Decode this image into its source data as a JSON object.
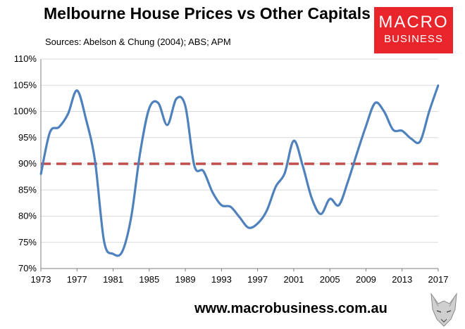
{
  "header": {
    "title": "Melbourne House Prices vs Other Capitals",
    "subtitle": "Sources: Abelson & Chung (2004); ABS; APM"
  },
  "logo": {
    "line1": "MACRO",
    "line2": "BUSINESS",
    "color": "#e8252b"
  },
  "footer": {
    "url": "www.macrobusiness.com.au"
  },
  "colors": {
    "series": "#4f81bd",
    "reference": "#c0504d",
    "grid": "#d9d9d9",
    "axis": "#7f7f7f"
  },
  "chart_data": {
    "type": "line",
    "title": "Melbourne House Prices vs Other Capitals",
    "subtitle": "Sources: Abelson & Chung (2004); ABS; APM",
    "xlabel": "",
    "ylabel": "",
    "x_ticks": [
      "1973",
      "1977",
      "1981",
      "1985",
      "1989",
      "1993",
      "1997",
      "2001",
      "2005",
      "2009",
      "2013",
      "2017"
    ],
    "y_ticks": [
      "70%",
      "75%",
      "80%",
      "85%",
      "90%",
      "95%",
      "100%",
      "105%",
      "110%"
    ],
    "xlim": [
      1973,
      2017
    ],
    "ylim": [
      70,
      110
    ],
    "grid": "horizontal",
    "legend": "none",
    "series": [
      {
        "x": [
          1973,
          1974,
          1975,
          1976,
          1977,
          1978,
          1979,
          1980,
          1981,
          1982,
          1983,
          1984,
          1985,
          1986,
          1987,
          1988,
          1989,
          1990,
          1991,
          1992,
          1993,
          1994,
          1995,
          1996,
          1997,
          1998,
          1999,
          2000,
          2001,
          2002,
          2003,
          2004,
          2005,
          2006,
          2007,
          2008,
          2009,
          2010,
          2011,
          2012,
          2013,
          2014,
          2015,
          2016,
          2017
        ],
        "values": [
          88.0,
          96.0,
          97.0,
          99.5,
          104.0,
          98.5,
          90.5,
          75.2,
          72.8,
          73.2,
          79.8,
          92.2,
          100.6,
          101.6,
          97.4,
          102.4,
          101.0,
          89.6,
          88.6,
          84.6,
          82.1,
          81.8,
          79.8,
          77.8,
          78.6,
          81.0,
          85.6,
          88.2,
          94.4,
          89.6,
          83.4,
          80.4,
          83.3,
          82.1,
          86.6,
          92.0,
          97.2,
          101.6,
          100.0,
          96.5,
          96.3,
          94.8,
          94.3,
          100.0,
          105.0
        ]
      }
    ],
    "reference_line": {
      "y": 90,
      "style": "dashed"
    }
  }
}
